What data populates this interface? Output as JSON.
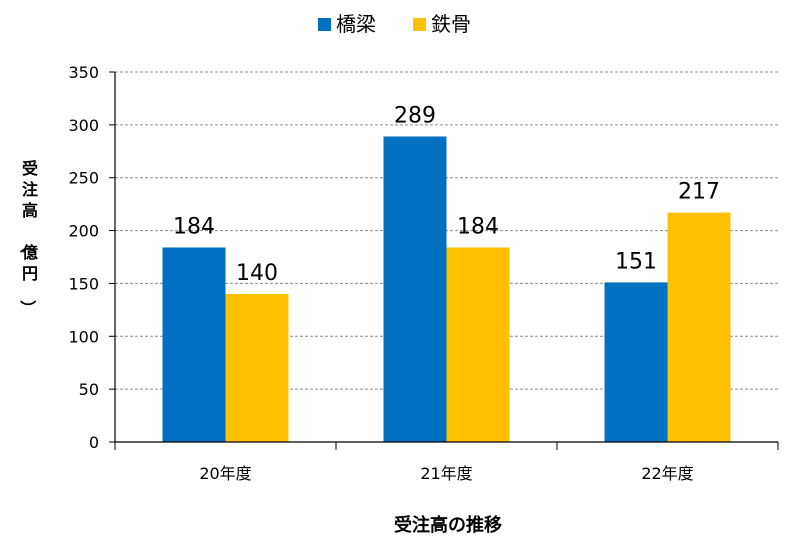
{
  "chart_data": {
    "type": "bar",
    "title": "",
    "categories": [
      "20年度",
      "21年度",
      "22年度"
    ],
    "series": [
      {
        "name": "橋梁",
        "values": [
          184,
          289,
          151
        ],
        "color": "#0070C0"
      },
      {
        "name": "鉄骨",
        "values": [
          140,
          184,
          217
        ],
        "color": "#FFC000"
      }
    ],
    "xlabel": "受注高の推移",
    "ylabel": "受注高（億円）",
    "ylim": [
      0,
      350
    ],
    "yticks": [
      0,
      50,
      100,
      150,
      200,
      250,
      300,
      350
    ],
    "grid": true,
    "legend_position": "top-center",
    "data_labels": true
  }
}
